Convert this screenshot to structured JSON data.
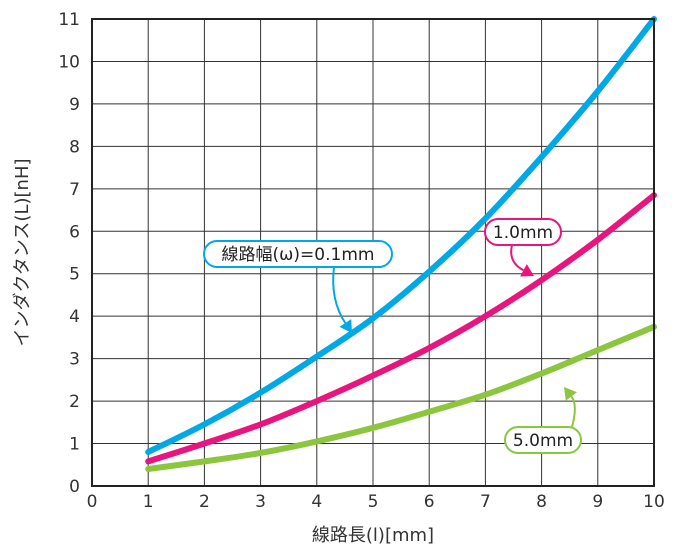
{
  "chart_data": {
    "type": "line",
    "title": "",
    "xlabel": "線路長(l)[mm]",
    "ylabel": "インダクタンス(L)[nH]",
    "xlim": [
      0,
      10
    ],
    "ylim": [
      0,
      11
    ],
    "xticks": [
      "0",
      "1",
      "2",
      "3",
      "4",
      "5",
      "6",
      "7",
      "8",
      "9",
      "10"
    ],
    "yticks": [
      "0",
      "1",
      "2",
      "3",
      "4",
      "5",
      "6",
      "7",
      "8",
      "9",
      "10",
      "11"
    ],
    "grid": true,
    "legend": "none",
    "series": [
      {
        "name": "線路幅(ω)=0.1mm",
        "color": "#00a8e6",
        "x": [
          1,
          2,
          3,
          4,
          5,
          6,
          7,
          8,
          9,
          10
        ],
        "y": [
          0.8,
          1.45,
          2.2,
          3.05,
          3.95,
          5.05,
          6.3,
          7.75,
          9.3,
          11.0
        ]
      },
      {
        "name": "1.0mm",
        "color": "#e8157f",
        "x": [
          1,
          2,
          3,
          4,
          5,
          6,
          7,
          8,
          9,
          10
        ],
        "y": [
          0.58,
          1.0,
          1.45,
          2.0,
          2.6,
          3.25,
          4.0,
          4.85,
          5.8,
          6.85
        ]
      },
      {
        "name": "5.0mm",
        "color": "#8cc63f",
        "x": [
          1,
          2,
          3,
          4,
          5,
          6,
          7,
          8,
          9,
          10
        ],
        "y": [
          0.4,
          0.58,
          0.78,
          1.05,
          1.37,
          1.75,
          2.15,
          2.65,
          3.2,
          3.75
        ]
      }
    ]
  }
}
